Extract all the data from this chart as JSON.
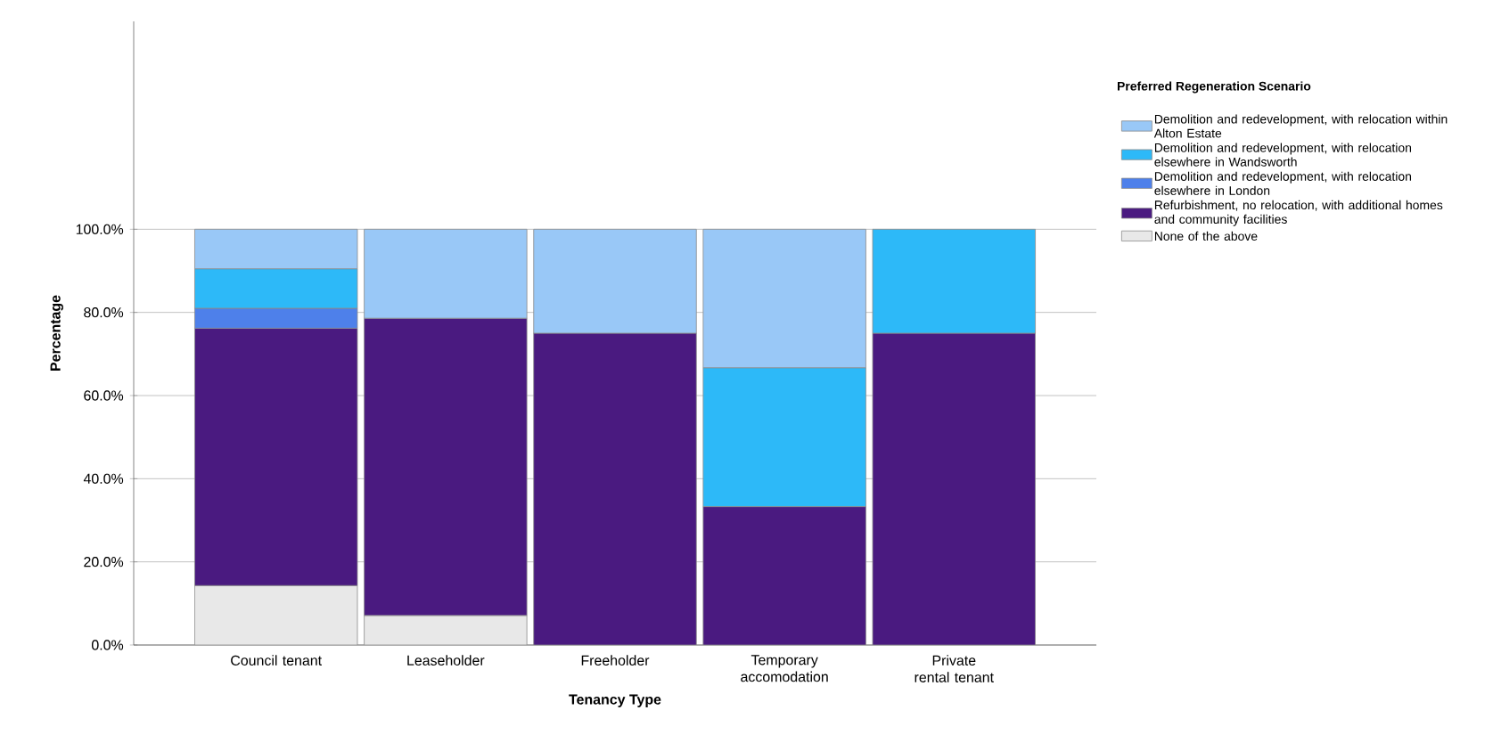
{
  "chart_data": {
    "type": "bar",
    "stacked": true,
    "xlabel": "Tenancy Type",
    "ylabel": "Percentage",
    "legend_title": "Preferred Regeneration Scenario",
    "categories": [
      "Council tenant",
      "Leaseholder",
      "Freeholder",
      "Temporary accomodation",
      "Private rental tenant"
    ],
    "series": [
      {
        "name": "None of the above",
        "color": "#e8e8e8",
        "values": [
          14.3,
          7.1,
          null,
          null,
          null
        ]
      },
      {
        "name": "Refurbishment, no relocation, with additional homes and community facilities",
        "color": "#4a1a80",
        "values": [
          61.9,
          71.5,
          75.0,
          33.3,
          75.0
        ]
      },
      {
        "name": "Demolition and redevelopment, with relocation elsewhere in London",
        "color": "#4e80ea",
        "values": [
          4.8,
          null,
          null,
          null,
          null
        ]
      },
      {
        "name": "Demolition and redevelopment, with relocation elsewhere in Wandsworth",
        "color": "#2db9f8",
        "values": [
          9.5,
          null,
          null,
          33.4,
          25.0
        ]
      },
      {
        "name": "Demolition and redevelopment, with relocation within Alton Estate",
        "color": "#99c8f7",
        "values": [
          9.5,
          21.4,
          25.0,
          33.3,
          null
        ]
      }
    ],
    "ylim": [
      0,
      150
    ],
    "yticks": [
      {
        "value": 0,
        "label": "0.0%"
      },
      {
        "value": 20,
        "label": "20.0%"
      },
      {
        "value": 40,
        "label": "40.0%"
      },
      {
        "value": 60,
        "label": "60.0%"
      },
      {
        "value": 80,
        "label": "80.0%"
      },
      {
        "value": 100,
        "label": "100.0%"
      }
    ],
    "grid": "y",
    "legend": "right"
  }
}
